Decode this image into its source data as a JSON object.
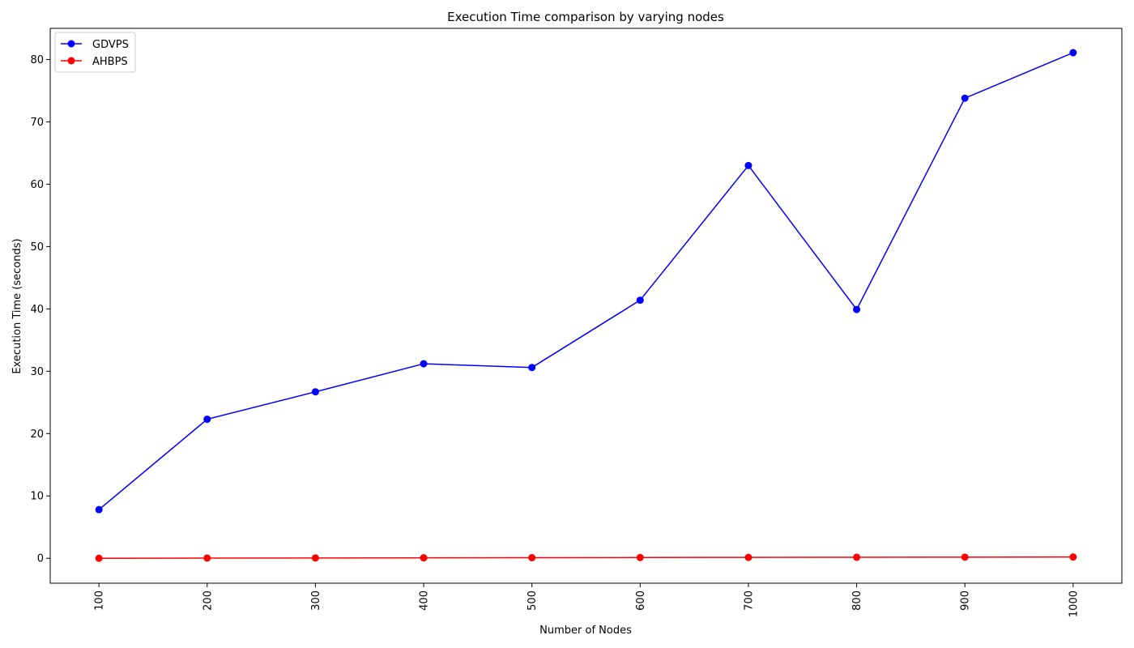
{
  "chart_data": {
    "type": "line",
    "title": "Execution Time comparison by varying nodes",
    "xlabel": "Number of Nodes",
    "ylabel": "Execution Time (seconds)",
    "x": [
      100,
      200,
      300,
      400,
      500,
      600,
      700,
      800,
      900,
      1000
    ],
    "xticks": [
      "100",
      "200",
      "300",
      "400",
      "500",
      "600",
      "700",
      "800",
      "900",
      "1000"
    ],
    "xlim": [
      55,
      1045
    ],
    "ylim": [
      -4,
      85
    ],
    "yticks": [
      0,
      10,
      20,
      30,
      40,
      50,
      60,
      70,
      80
    ],
    "grid": false,
    "legend_position": "upper-left",
    "series": [
      {
        "name": "GDVPS",
        "color": "#0000ff",
        "values": [
          7.8,
          22.3,
          26.7,
          31.2,
          30.6,
          41.4,
          63.0,
          39.9,
          73.8,
          81.1
        ]
      },
      {
        "name": "AHBPS",
        "color": "#ff0000",
        "values": [
          0.0,
          0.03,
          0.05,
          0.07,
          0.09,
          0.12,
          0.14,
          0.16,
          0.18,
          0.2
        ]
      }
    ]
  }
}
